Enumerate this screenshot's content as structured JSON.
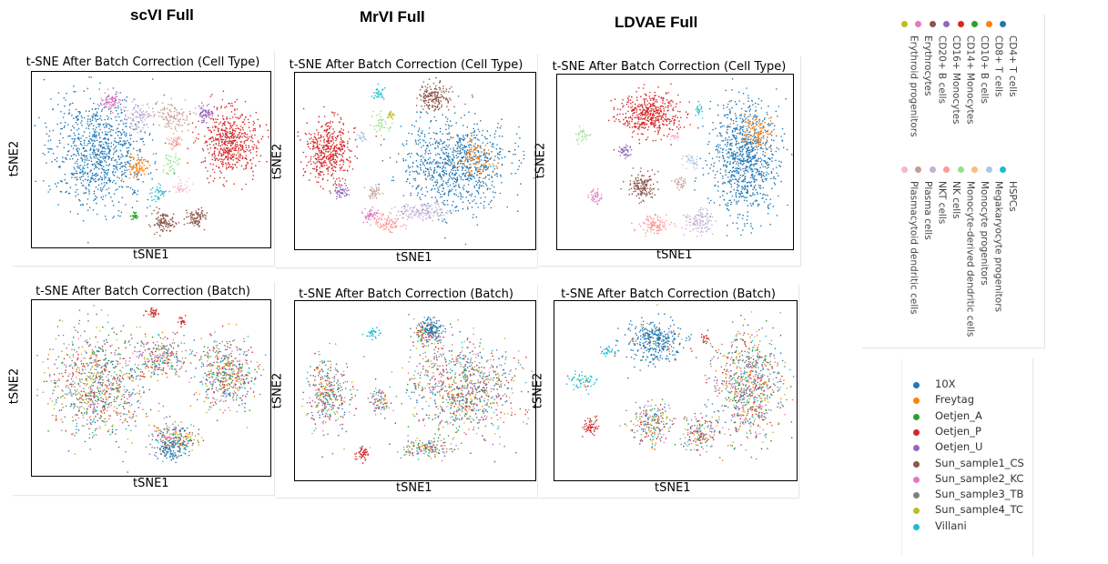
{
  "models": [
    {
      "name": "scVI Full"
    },
    {
      "name": "MrVI Full"
    },
    {
      "name": "LDVAE Full"
    }
  ],
  "panel_titles": {
    "cell_type": "t-SNE After Batch Correction (Cell Type)",
    "batch": "t-SNE After Batch Correction (Batch)"
  },
  "axes": {
    "xlabel": "tSNE1",
    "ylabel": "tSNE2"
  },
  "cell_type_legend": [
    {
      "label": "CD4+ T cells",
      "color": "#1f77b4"
    },
    {
      "label": "CD8+ T cells",
      "color": "#ff7f0e"
    },
    {
      "label": "CD10+ B cells",
      "color": "#2ca02c"
    },
    {
      "label": "CD14+ Monocytes",
      "color": "#d62728"
    },
    {
      "label": "CD16+ Monocytes",
      "color": "#9467bd"
    },
    {
      "label": "CD20+ B cells",
      "color": "#8c564b"
    },
    {
      "label": "Erythrocytes",
      "color": "#e377c2"
    },
    {
      "label": "Erythroid progenitors",
      "color": "#bcbd22"
    },
    {
      "label": "HSPCs",
      "color": "#17becf"
    },
    {
      "label": "Megakaryocyte progenitors",
      "color": "#aec7e8"
    },
    {
      "label": "Monocyte progenitors",
      "color": "#ffbb78"
    },
    {
      "label": "Monocyte-derived dendritic cells",
      "color": "#98df8a"
    },
    {
      "label": "NK cells",
      "color": "#ff9896"
    },
    {
      "label": "NKT cells",
      "color": "#c5b0d5"
    },
    {
      "label": "Plasma cells",
      "color": "#c49c94"
    },
    {
      "label": "Plasmacytoid dendritic cells",
      "color": "#f7b6d2"
    }
  ],
  "batch_legend": [
    {
      "label": "10X",
      "color": "#1f77b4"
    },
    {
      "label": "Freytag",
      "color": "#ff7f0e"
    },
    {
      "label": "Oetjen_A",
      "color": "#2ca02c"
    },
    {
      "label": "Oetjen_P",
      "color": "#d62728"
    },
    {
      "label": "Oetjen_U",
      "color": "#9467bd"
    },
    {
      "label": "Sun_sample1_CS",
      "color": "#8c564b"
    },
    {
      "label": "Sun_sample2_KC",
      "color": "#e377c2"
    },
    {
      "label": "Sun_sample3_TB",
      "color": "#7f7f7f"
    },
    {
      "label": "Sun_sample4_TC",
      "color": "#bcbd22"
    },
    {
      "label": "Villani",
      "color": "#17becf"
    }
  ],
  "chart_data": [
    {
      "type": "scatter",
      "model": "scVI Full",
      "title": "t-SNE After Batch Correction (Cell Type)",
      "xlabel": "tSNE1",
      "ylabel": "tSNE2",
      "color_by": "cell type",
      "clusters": [
        {
          "ct": 0,
          "x": 0.28,
          "y": 0.45,
          "w": 0.24,
          "h": 0.38,
          "n": 900
        },
        {
          "ct": 3,
          "x": 0.83,
          "y": 0.4,
          "w": 0.14,
          "h": 0.22,
          "n": 550
        },
        {
          "ct": 14,
          "x": 0.58,
          "y": 0.25,
          "w": 0.09,
          "h": 0.1,
          "n": 110
        },
        {
          "ct": 13,
          "x": 0.44,
          "y": 0.26,
          "w": 0.08,
          "h": 0.1,
          "n": 100
        },
        {
          "ct": 6,
          "x": 0.33,
          "y": 0.17,
          "w": 0.05,
          "h": 0.07,
          "n": 70
        },
        {
          "ct": 1,
          "x": 0.45,
          "y": 0.54,
          "w": 0.05,
          "h": 0.08,
          "n": 80
        },
        {
          "ct": 4,
          "x": 0.73,
          "y": 0.24,
          "w": 0.04,
          "h": 0.07,
          "n": 60
        },
        {
          "ct": 5,
          "x": 0.55,
          "y": 0.86,
          "w": 0.06,
          "h": 0.07,
          "n": 110
        },
        {
          "ct": 5,
          "x": 0.69,
          "y": 0.83,
          "w": 0.05,
          "h": 0.06,
          "n": 90
        },
        {
          "ct": 11,
          "x": 0.58,
          "y": 0.52,
          "w": 0.04,
          "h": 0.09,
          "n": 40
        },
        {
          "ct": 8,
          "x": 0.53,
          "y": 0.69,
          "w": 0.04,
          "h": 0.05,
          "n": 40
        },
        {
          "ct": 2,
          "x": 0.43,
          "y": 0.82,
          "w": 0.02,
          "h": 0.04,
          "n": 25
        },
        {
          "ct": 15,
          "x": 0.62,
          "y": 0.66,
          "w": 0.04,
          "h": 0.05,
          "n": 35
        },
        {
          "ct": 12,
          "x": 0.6,
          "y": 0.4,
          "w": 0.04,
          "h": 0.05,
          "n": 40
        }
      ]
    },
    {
      "type": "scatter",
      "model": "MrVI Full",
      "title": "t-SNE After Batch Correction (Cell Type)",
      "xlabel": "tSNE1",
      "ylabel": "tSNE2",
      "color_by": "cell type",
      "clusters": [
        {
          "ct": 0,
          "x": 0.67,
          "y": 0.52,
          "w": 0.26,
          "h": 0.3,
          "n": 900
        },
        {
          "ct": 1,
          "x": 0.75,
          "y": 0.48,
          "w": 0.1,
          "h": 0.14,
          "n": 100
        },
        {
          "ct": 3,
          "x": 0.14,
          "y": 0.44,
          "w": 0.11,
          "h": 0.21,
          "n": 450
        },
        {
          "ct": 5,
          "x": 0.58,
          "y": 0.14,
          "w": 0.08,
          "h": 0.09,
          "n": 180
        },
        {
          "ct": 13,
          "x": 0.53,
          "y": 0.79,
          "w": 0.13,
          "h": 0.06,
          "n": 140
        },
        {
          "ct": 12,
          "x": 0.38,
          "y": 0.85,
          "w": 0.08,
          "h": 0.06,
          "n": 90
        },
        {
          "ct": 6,
          "x": 0.31,
          "y": 0.8,
          "w": 0.04,
          "h": 0.04,
          "n": 50
        },
        {
          "ct": 4,
          "x": 0.19,
          "y": 0.67,
          "w": 0.04,
          "h": 0.04,
          "n": 50
        },
        {
          "ct": 11,
          "x": 0.36,
          "y": 0.29,
          "w": 0.05,
          "h": 0.07,
          "n": 40
        },
        {
          "ct": 8,
          "x": 0.35,
          "y": 0.12,
          "w": 0.03,
          "h": 0.04,
          "n": 30
        },
        {
          "ct": 14,
          "x": 0.33,
          "y": 0.68,
          "w": 0.04,
          "h": 0.04,
          "n": 40
        },
        {
          "ct": 9,
          "x": 0.28,
          "y": 0.36,
          "w": 0.03,
          "h": 0.05,
          "n": 25
        },
        {
          "ct": 7,
          "x": 0.4,
          "y": 0.24,
          "w": 0.02,
          "h": 0.03,
          "n": 20
        }
      ]
    },
    {
      "type": "scatter",
      "model": "LDVAE Full",
      "title": "t-SNE After Batch Correction (Cell Type)",
      "xlabel": "tSNE1",
      "ylabel": "tSNE2",
      "color_by": "cell type",
      "clusters": [
        {
          "ct": 0,
          "x": 0.8,
          "y": 0.47,
          "w": 0.17,
          "h": 0.38,
          "n": 900
        },
        {
          "ct": 1,
          "x": 0.84,
          "y": 0.33,
          "w": 0.08,
          "h": 0.12,
          "n": 110
        },
        {
          "ct": 3,
          "x": 0.39,
          "y": 0.23,
          "w": 0.15,
          "h": 0.15,
          "n": 450
        },
        {
          "ct": 5,
          "x": 0.36,
          "y": 0.64,
          "w": 0.07,
          "h": 0.09,
          "n": 150
        },
        {
          "ct": 12,
          "x": 0.41,
          "y": 0.86,
          "w": 0.08,
          "h": 0.06,
          "n": 110
        },
        {
          "ct": 13,
          "x": 0.6,
          "y": 0.84,
          "w": 0.07,
          "h": 0.08,
          "n": 110
        },
        {
          "ct": 6,
          "x": 0.16,
          "y": 0.7,
          "w": 0.03,
          "h": 0.05,
          "n": 40
        },
        {
          "ct": 4,
          "x": 0.29,
          "y": 0.44,
          "w": 0.03,
          "h": 0.05,
          "n": 40
        },
        {
          "ct": 11,
          "x": 0.11,
          "y": 0.35,
          "w": 0.04,
          "h": 0.05,
          "n": 30
        },
        {
          "ct": 8,
          "x": 0.6,
          "y": 0.2,
          "w": 0.02,
          "h": 0.05,
          "n": 20
        },
        {
          "ct": 9,
          "x": 0.57,
          "y": 0.5,
          "w": 0.04,
          "h": 0.06,
          "n": 35
        },
        {
          "ct": 14,
          "x": 0.52,
          "y": 0.62,
          "w": 0.03,
          "h": 0.04,
          "n": 30
        },
        {
          "ct": 15,
          "x": 0.5,
          "y": 0.36,
          "w": 0.02,
          "h": 0.03,
          "n": 20
        }
      ]
    },
    {
      "type": "scatter",
      "model": "scVI Full",
      "title": "t-SNE After Batch Correction (Batch)",
      "xlabel": "tSNE1",
      "ylabel": "tSNE2",
      "color_by": "batch",
      "clusters": [
        {
          "b": "mix",
          "x": 0.28,
          "y": 0.48,
          "w": 0.24,
          "h": 0.36,
          "n": 900
        },
        {
          "b": "mix",
          "x": 0.82,
          "y": 0.42,
          "w": 0.14,
          "h": 0.22,
          "n": 500
        },
        {
          "b": "mix",
          "x": 0.55,
          "y": 0.32,
          "w": 0.12,
          "h": 0.14,
          "n": 250
        },
        {
          "b": "mix",
          "x": 0.6,
          "y": 0.78,
          "w": 0.12,
          "h": 0.1,
          "n": 200
        },
        {
          "b": 3,
          "x": 0.5,
          "y": 0.07,
          "w": 0.04,
          "h": 0.03,
          "n": 40
        },
        {
          "b": 3,
          "x": 0.63,
          "y": 0.12,
          "w": 0.02,
          "h": 0.03,
          "n": 20
        },
        {
          "b": 0,
          "x": 0.58,
          "y": 0.85,
          "w": 0.08,
          "h": 0.08,
          "n": 120
        }
      ]
    },
    {
      "type": "scatter",
      "model": "MrVI Full",
      "title": "t-SNE After Batch Correction (Batch)",
      "xlabel": "tSNE1",
      "ylabel": "tSNE2",
      "color_by": "batch",
      "clusters": [
        {
          "b": "mix",
          "x": 0.7,
          "y": 0.48,
          "w": 0.26,
          "h": 0.3,
          "n": 900
        },
        {
          "b": "mix",
          "x": 0.14,
          "y": 0.52,
          "w": 0.11,
          "h": 0.22,
          "n": 350
        },
        {
          "b": "mix",
          "x": 0.55,
          "y": 0.82,
          "w": 0.13,
          "h": 0.06,
          "n": 150
        },
        {
          "b": "mix",
          "x": 0.55,
          "y": 0.18,
          "w": 0.08,
          "h": 0.09,
          "n": 140
        },
        {
          "b": 0,
          "x": 0.57,
          "y": 0.15,
          "w": 0.05,
          "h": 0.06,
          "n": 90
        },
        {
          "b": 3,
          "x": 0.28,
          "y": 0.85,
          "w": 0.03,
          "h": 0.05,
          "n": 50
        },
        {
          "b": 9,
          "x": 0.32,
          "y": 0.18,
          "w": 0.03,
          "h": 0.04,
          "n": 30
        },
        {
          "b": "mix",
          "x": 0.35,
          "y": 0.55,
          "w": 0.05,
          "h": 0.1,
          "n": 80
        }
      ]
    },
    {
      "type": "scatter",
      "model": "LDVAE Full",
      "title": "t-SNE After Batch Correction (Batch)",
      "xlabel": "tSNE1",
      "ylabel": "tSNE2",
      "color_by": "batch",
      "clusters": [
        {
          "b": "mix",
          "x": 0.8,
          "y": 0.48,
          "w": 0.17,
          "h": 0.34,
          "n": 800
        },
        {
          "b": 0,
          "x": 0.42,
          "y": 0.22,
          "w": 0.14,
          "h": 0.14,
          "n": 350
        },
        {
          "b": "mix",
          "x": 0.4,
          "y": 0.68,
          "w": 0.1,
          "h": 0.14,
          "n": 220
        },
        {
          "b": "mix",
          "x": 0.6,
          "y": 0.74,
          "w": 0.08,
          "h": 0.12,
          "n": 160
        },
        {
          "b": 3,
          "x": 0.15,
          "y": 0.7,
          "w": 0.04,
          "h": 0.06,
          "n": 60
        },
        {
          "b": 9,
          "x": 0.12,
          "y": 0.45,
          "w": 0.06,
          "h": 0.06,
          "n": 60
        },
        {
          "b": 9,
          "x": 0.22,
          "y": 0.28,
          "w": 0.04,
          "h": 0.04,
          "n": 30
        },
        {
          "b": 3,
          "x": 0.62,
          "y": 0.22,
          "w": 0.02,
          "h": 0.06,
          "n": 20
        }
      ]
    }
  ]
}
